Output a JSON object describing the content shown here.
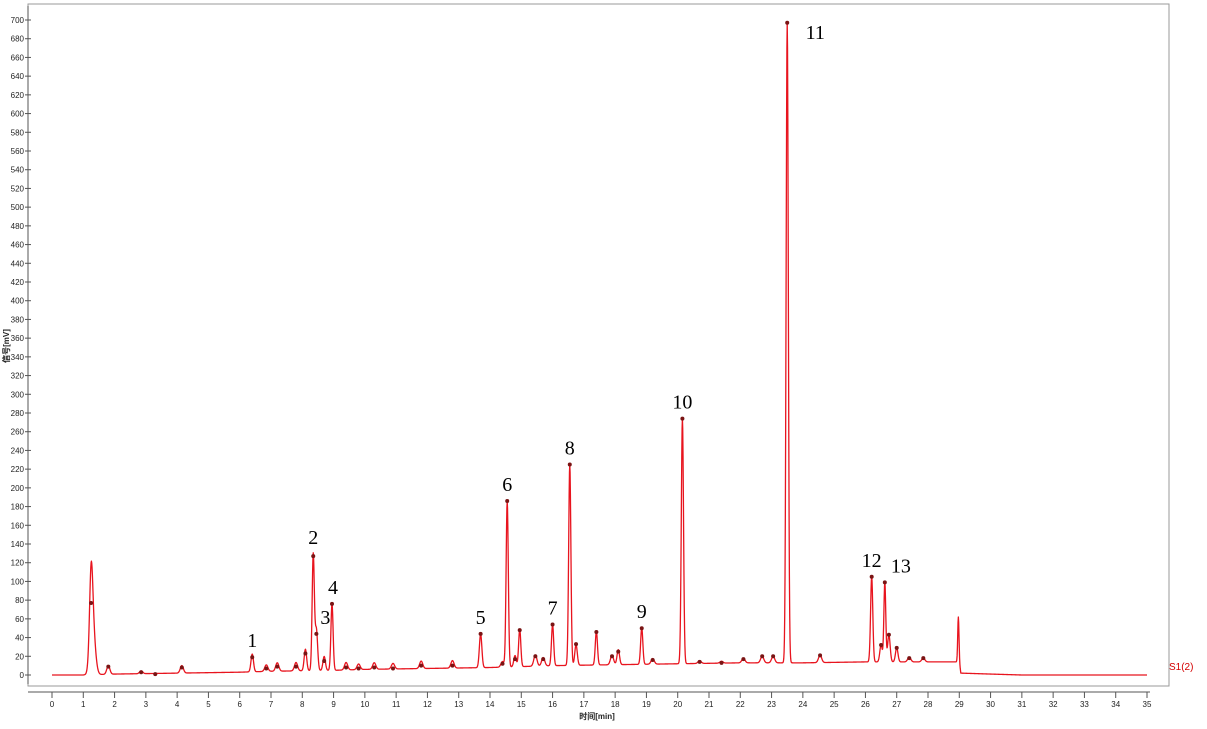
{
  "chart_data": {
    "type": "line",
    "title": "",
    "xlabel": "时间[min]",
    "ylabel": "信号[mV]",
    "xlim": [
      0,
      35
    ],
    "ylim": [
      -10,
      705
    ],
    "x_ticks": [
      0,
      1,
      2,
      3,
      4,
      5,
      6,
      7,
      8,
      9,
      10,
      11,
      12,
      13,
      14,
      15,
      16,
      17,
      18,
      19,
      20,
      21,
      22,
      23,
      24,
      25,
      26,
      27,
      28,
      29,
      30,
      31,
      32,
      33,
      34,
      35
    ],
    "y_ticks": [
      0,
      20,
      40,
      60,
      80,
      100,
      120,
      140,
      160,
      180,
      200,
      220,
      240,
      260,
      280,
      300,
      320,
      340,
      360,
      380,
      400,
      420,
      440,
      460,
      480,
      500,
      520,
      540,
      560,
      580,
      600,
      620,
      640,
      660,
      680,
      700
    ],
    "grid": false,
    "series": [
      {
        "name": "S1(2)",
        "color": "#e8141e",
        "baseline_points": [
          [
            0,
            0
          ],
          [
            1.0,
            0
          ],
          [
            2.0,
            1
          ],
          [
            4.0,
            2
          ],
          [
            6.0,
            3
          ],
          [
            7.0,
            4
          ],
          [
            9.0,
            5
          ],
          [
            10.0,
            6
          ],
          [
            12.0,
            7
          ],
          [
            14.0,
            8
          ],
          [
            16.0,
            10
          ],
          [
            18.0,
            11
          ],
          [
            20.0,
            12
          ],
          [
            22.0,
            13
          ],
          [
            24.0,
            13
          ],
          [
            26.0,
            14
          ],
          [
            29.0,
            14
          ],
          [
            29.05,
            2
          ],
          [
            30.0,
            1
          ],
          [
            31.0,
            0
          ],
          [
            35.0,
            0
          ]
        ],
        "peaks": [
          [
            1.25,
            77,
            0.05
          ],
          [
            1.3,
            52,
            0.08
          ],
          [
            1.8,
            9,
            0.05
          ],
          [
            2.85,
            3,
            0.05
          ],
          [
            4.15,
            8,
            0.05
          ],
          [
            6.4,
            19,
            0.04
          ],
          [
            6.85,
            7,
            0.05
          ],
          [
            7.2,
            9,
            0.05
          ],
          [
            7.8,
            9,
            0.05
          ],
          [
            8.1,
            23,
            0.04
          ],
          [
            8.35,
            124,
            0.035
          ],
          [
            8.45,
            44,
            0.04
          ],
          [
            8.7,
            15,
            0.04
          ],
          [
            8.95,
            71,
            0.035
          ],
          [
            9.4,
            8,
            0.05
          ],
          [
            9.8,
            6,
            0.05
          ],
          [
            10.3,
            7,
            0.05
          ],
          [
            10.9,
            6,
            0.05
          ],
          [
            11.8,
            8,
            0.05
          ],
          [
            12.8,
            8,
            0.05
          ],
          [
            13.7,
            36,
            0.04
          ],
          [
            14.4,
            6,
            0.05
          ],
          [
            14.55,
            177,
            0.035
          ],
          [
            14.8,
            12,
            0.04
          ],
          [
            14.95,
            40,
            0.035
          ],
          [
            15.45,
            12,
            0.05
          ],
          [
            15.7,
            9,
            0.05
          ],
          [
            16.0,
            44,
            0.035
          ],
          [
            16.55,
            215,
            0.035
          ],
          [
            16.75,
            22,
            0.04
          ],
          [
            17.4,
            36,
            0.035
          ],
          [
            17.9,
            10,
            0.05
          ],
          [
            18.1,
            16,
            0.04
          ],
          [
            18.85,
            39,
            0.035
          ],
          [
            19.2,
            6,
            0.05
          ],
          [
            20.15,
            262,
            0.035
          ],
          [
            20.7,
            3,
            0.05
          ],
          [
            21.4,
            2,
            0.05
          ],
          [
            22.1,
            5,
            0.05
          ],
          [
            22.7,
            7,
            0.05
          ],
          [
            23.05,
            7,
            0.05
          ],
          [
            23.5,
            684,
            0.035
          ],
          [
            24.55,
            8,
            0.05
          ],
          [
            26.2,
            91,
            0.035
          ],
          [
            26.5,
            18,
            0.04
          ],
          [
            26.62,
            85,
            0.03
          ],
          [
            26.75,
            29,
            0.04
          ],
          [
            27.0,
            15,
            0.04
          ],
          [
            27.4,
            5,
            0.05
          ],
          [
            27.85,
            4,
            0.05
          ],
          [
            28.97,
            48,
            0.02
          ]
        ]
      }
    ],
    "peak_markers": [
      [
        1.25,
        77
      ],
      [
        1.8,
        9
      ],
      [
        2.85,
        3
      ],
      [
        3.3,
        1
      ],
      [
        4.15,
        8
      ],
      [
        6.4,
        19
      ],
      [
        6.85,
        7
      ],
      [
        7.2,
        9
      ],
      [
        7.8,
        9
      ],
      [
        8.1,
        23
      ],
      [
        8.35,
        127
      ],
      [
        8.45,
        44
      ],
      [
        8.7,
        15
      ],
      [
        8.95,
        76
      ],
      [
        9.4,
        8
      ],
      [
        9.8,
        7
      ],
      [
        10.3,
        8
      ],
      [
        10.9,
        7
      ],
      [
        11.8,
        10
      ],
      [
        12.8,
        10
      ],
      [
        13.7,
        44
      ],
      [
        14.4,
        12
      ],
      [
        14.55,
        186
      ],
      [
        14.8,
        17
      ],
      [
        14.95,
        48
      ],
      [
        15.45,
        20
      ],
      [
        15.7,
        17
      ],
      [
        16.0,
        54
      ],
      [
        16.55,
        225
      ],
      [
        16.75,
        33
      ],
      [
        17.4,
        46
      ],
      [
        17.9,
        20
      ],
      [
        18.1,
        25
      ],
      [
        18.85,
        50
      ],
      [
        19.2,
        16
      ],
      [
        20.15,
        274
      ],
      [
        20.7,
        14
      ],
      [
        21.4,
        13
      ],
      [
        22.1,
        17
      ],
      [
        22.7,
        20
      ],
      [
        23.05,
        20
      ],
      [
        23.5,
        697
      ],
      [
        24.55,
        21
      ],
      [
        26.2,
        105
      ],
      [
        26.5,
        32
      ],
      [
        26.62,
        99
      ],
      [
        26.75,
        43
      ],
      [
        27.0,
        29
      ],
      [
        27.4,
        18
      ],
      [
        27.85,
        18
      ]
    ],
    "annotations": [
      {
        "label": "1",
        "x": 6.4,
        "y": 19
      },
      {
        "label": "2",
        "x": 8.35,
        "y": 127
      },
      {
        "label": "3",
        "x": 8.45,
        "y": 44
      },
      {
        "label": "4",
        "x": 8.95,
        "y": 76
      },
      {
        "label": "5",
        "x": 13.7,
        "y": 44
      },
      {
        "label": "6",
        "x": 14.55,
        "y": 186
      },
      {
        "label": "7",
        "x": 16.0,
        "y": 54
      },
      {
        "label": "8",
        "x": 16.55,
        "y": 225
      },
      {
        "label": "9",
        "x": 18.85,
        "y": 50
      },
      {
        "label": "10",
        "x": 20.15,
        "y": 274
      },
      {
        "label": "11",
        "x": 23.5,
        "y": 697
      },
      {
        "label": "12",
        "x": 26.2,
        "y": 105
      },
      {
        "label": "13",
        "x": 26.62,
        "y": 99
      }
    ]
  }
}
